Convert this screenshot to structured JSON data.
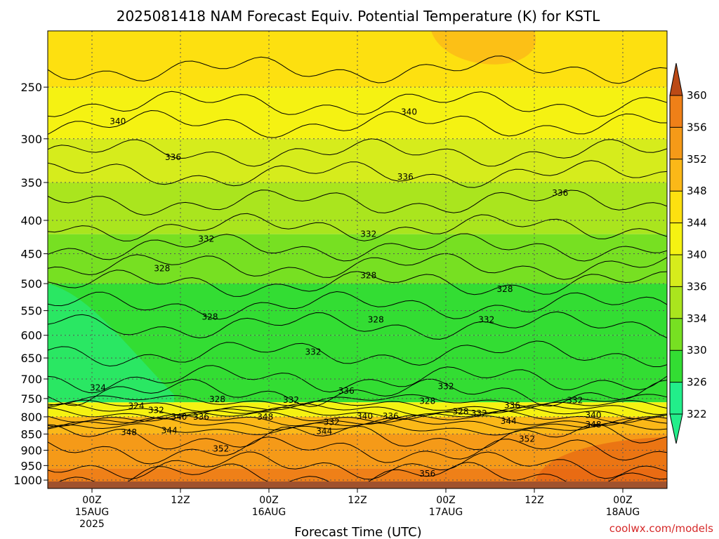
{
  "chart_data": {
    "type": "heatmap",
    "title": "2025081418 NAM Forecast Equiv. Potential Temperature (K) for KSTL",
    "xlabel": "Forecast Time (UTC)",
    "ylabel": "",
    "y_ticks": [
      "250",
      "300",
      "350",
      "400",
      "450",
      "500",
      "550",
      "600",
      "650",
      "700",
      "750",
      "800",
      "850",
      "900",
      "950",
      "1000"
    ],
    "x_ticks": [
      {
        "hour": 0,
        "lines": [
          "00Z",
          "15AUG",
          "2025"
        ]
      },
      {
        "hour": 12,
        "lines": [
          "12Z"
        ]
      },
      {
        "hour": 24,
        "lines": [
          "00Z",
          "16AUG"
        ]
      },
      {
        "hour": 36,
        "lines": [
          "12Z"
        ]
      },
      {
        "hour": 48,
        "lines": [
          "00Z",
          "17AUG"
        ]
      },
      {
        "hour": 60,
        "lines": [
          "12Z"
        ]
      },
      {
        "hour": 72,
        "lines": [
          "00Z",
          "18AUG"
        ]
      }
    ],
    "xlim": [
      -6,
      78
    ],
    "ylim_pressure": [
      1030,
      205
    ],
    "colorbar": {
      "levels": [
        322,
        326,
        330,
        334,
        336,
        340,
        344,
        348,
        352,
        356,
        360
      ],
      "labels": [
        "360",
        "356",
        "352",
        "348",
        "344",
        "340",
        "336",
        "334",
        "330",
        "326",
        "322"
      ],
      "colors": [
        "#22ee8a",
        "#33dd33",
        "#77e022",
        "#aae51e",
        "#d6ec1c",
        "#f5f212",
        "#fde010",
        "#fbb818",
        "#f59a18",
        "#ef8018",
        "#e55d10",
        "#bb4a16"
      ]
    },
    "contour_labels": [
      {
        "text": "340",
        "hour": 3.5,
        "p": 282
      },
      {
        "text": "336",
        "hour": 11,
        "p": 320
      },
      {
        "text": "340",
        "hour": 43,
        "p": 273
      },
      {
        "text": "336",
        "hour": 42.5,
        "p": 343
      },
      {
        "text": "336",
        "hour": 63.5,
        "p": 363
      },
      {
        "text": "332",
        "hour": 15.5,
        "p": 427
      },
      {
        "text": "332",
        "hour": 37.5,
        "p": 420
      },
      {
        "text": "328",
        "hour": 9.5,
        "p": 474
      },
      {
        "text": "328",
        "hour": 37.5,
        "p": 486
      },
      {
        "text": "328",
        "hour": 56,
        "p": 510
      },
      {
        "text": "328",
        "hour": 16,
        "p": 562
      },
      {
        "text": "328",
        "hour": 38.5,
        "p": 568
      },
      {
        "text": "332",
        "hour": 53.5,
        "p": 568
      },
      {
        "text": "332",
        "hour": 30,
        "p": 636
      },
      {
        "text": "324",
        "hour": 0.8,
        "p": 722
      },
      {
        "text": "336",
        "hour": 34.5,
        "p": 730
      },
      {
        "text": "332",
        "hour": 48,
        "p": 718
      },
      {
        "text": "328",
        "hour": 17,
        "p": 752
      },
      {
        "text": "332",
        "hour": 27,
        "p": 754
      },
      {
        "text": "328",
        "hour": 45.5,
        "p": 757
      },
      {
        "text": "336",
        "hour": 57,
        "p": 768
      },
      {
        "text": "332",
        "hour": 65.5,
        "p": 755
      },
      {
        "text": "324",
        "hour": 6,
        "p": 770
      },
      {
        "text": "332",
        "hour": 8.7,
        "p": 782
      },
      {
        "text": "340",
        "hour": 11.8,
        "p": 800
      },
      {
        "text": "336",
        "hour": 14.8,
        "p": 800
      },
      {
        "text": "348",
        "hour": 23.5,
        "p": 800
      },
      {
        "text": "328",
        "hour": 50,
        "p": 785
      },
      {
        "text": "332",
        "hour": 52.5,
        "p": 790
      },
      {
        "text": "340",
        "hour": 37,
        "p": 798
      },
      {
        "text": "336",
        "hour": 40.5,
        "p": 798
      },
      {
        "text": "332",
        "hour": 32.5,
        "p": 815
      },
      {
        "text": "344",
        "hour": 56.5,
        "p": 812
      },
      {
        "text": "340",
        "hour": 68,
        "p": 795
      },
      {
        "text": "348",
        "hour": 68,
        "p": 822
      },
      {
        "text": "348",
        "hour": 5,
        "p": 845
      },
      {
        "text": "344",
        "hour": 10.5,
        "p": 840
      },
      {
        "text": "344",
        "hour": 31.5,
        "p": 842
      },
      {
        "text": "352",
        "hour": 17.5,
        "p": 895
      },
      {
        "text": "352",
        "hour": 59,
        "p": 865
      },
      {
        "text": "356",
        "hour": 45.5,
        "p": 978
      }
    ]
  },
  "credit": "coolwx.com/models"
}
